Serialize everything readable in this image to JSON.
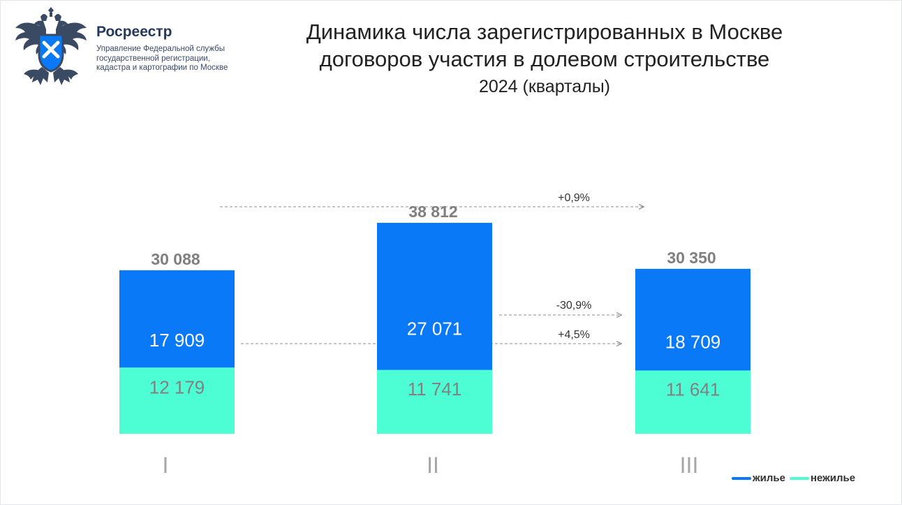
{
  "header": {
    "logo_icon": "double-headed-eagle-emblem",
    "brand_name": "Росреестр",
    "brand_sub": [
      "Управление Федеральной службы",
      "государственной регистрации,",
      "кадастра и картографии по Москве"
    ],
    "title_lines": [
      "Динамика числа зарегистрированных в Москве",
      "договоров участия в долевом строительстве"
    ],
    "subtitle": "2024 (кварталы)"
  },
  "colors": {
    "residential": "#0a79f8",
    "nonresidential": "#4dfed5",
    "total_text": "#7f7f7f",
    "nonres_text": "#808080"
  },
  "chart_data": {
    "type": "bar",
    "stacked": true,
    "title": "Динамика числа зарегистрированных в Москве договоров участия в долевом строительстве",
    "subtitle": "2024 (кварталы)",
    "categories": [
      "I",
      "II",
      "III"
    ],
    "series": [
      {
        "name": "нежилье",
        "values": [
          12179,
          11741,
          11641
        ],
        "labels": [
          "12 179",
          "11 741",
          "11 641"
        ]
      },
      {
        "name": "жилье",
        "values": [
          17909,
          27071,
          18709
        ],
        "labels": [
          "17 909",
          "27 071",
          "18 709"
        ]
      }
    ],
    "totals": [
      30088,
      38812,
      30350
    ],
    "total_labels": [
      "30 088",
      "38 812",
      "30 350"
    ],
    "comparisons": [
      {
        "from": "I",
        "to": "III",
        "measure": "total",
        "label": "+0,9%"
      },
      {
        "from": "II",
        "to": "III",
        "measure": "жилье",
        "label": "-30,9%"
      },
      {
        "from": "I",
        "to": "III",
        "measure": "жилье",
        "label": "+4,5%"
      }
    ],
    "legend": {
      "position": "bottom-right",
      "items": [
        "жилье",
        "нежилье"
      ]
    },
    "ylim": [
      0,
      40000
    ],
    "grid": false
  }
}
